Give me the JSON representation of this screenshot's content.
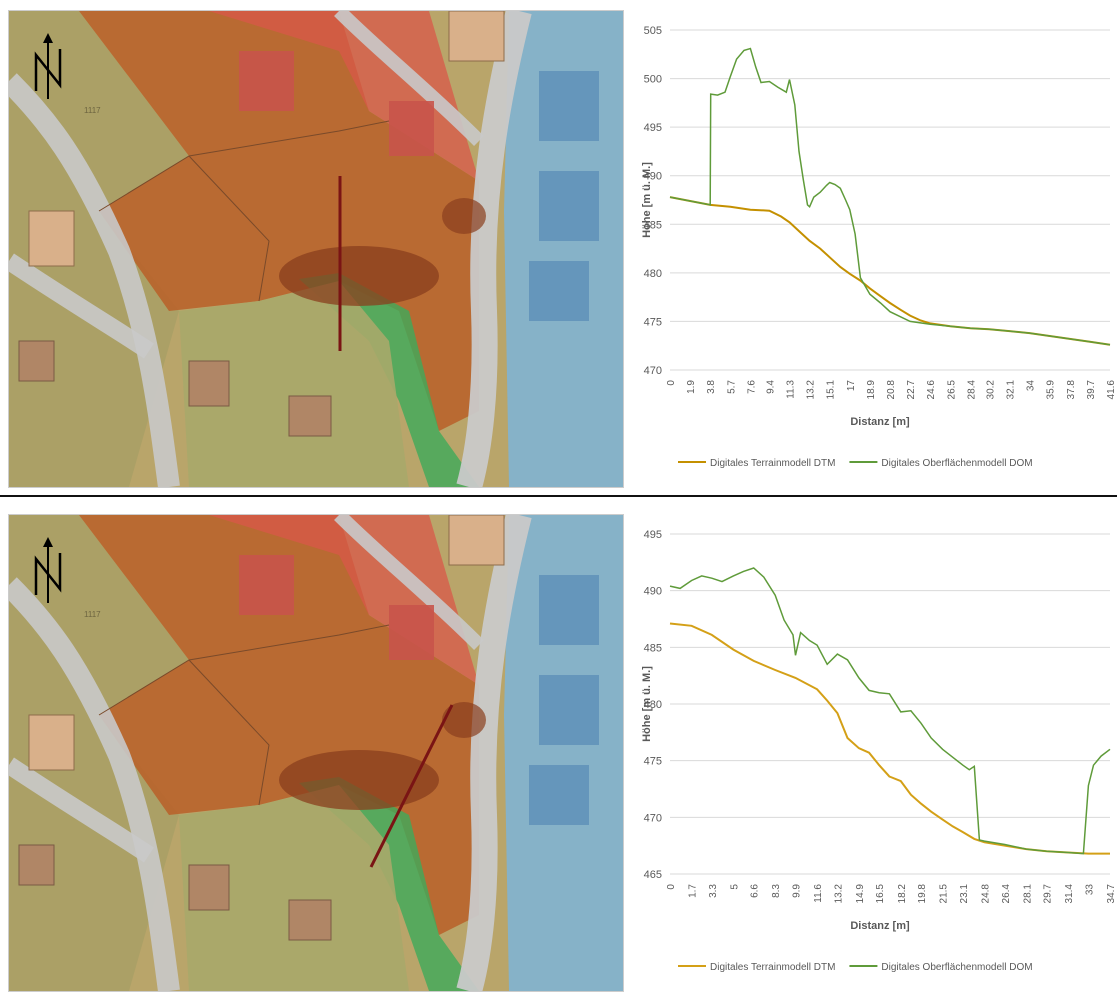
{
  "panels": [
    {
      "map": {
        "north_arrow": "north-arrow-icon",
        "parcel_label": "1117",
        "section_line": "vertical"
      },
      "chart_data": {
        "type": "line",
        "ylabel": "Höhe [m ü. M.]",
        "xlabel": "Distanz [m]",
        "ylim": [
          470,
          505
        ],
        "yticks": [
          470,
          475,
          480,
          485,
          490,
          495,
          500,
          505
        ],
        "xtick_labels": [
          "0",
          "1.9",
          "3.8",
          "5.7",
          "7.6",
          "9.4",
          "11.3",
          "13.2",
          "15.1",
          "17",
          "18.9",
          "20.8",
          "22.7",
          "24.6",
          "26.5",
          "28.4",
          "30.2",
          "32.1",
          "34",
          "35.9",
          "37.8",
          "39.7",
          "41.6"
        ],
        "legend": "bottom",
        "grid": true,
        "series": [
          {
            "name": "Digitales Terrainmodell DTM",
            "color": "#c49000",
            "x": [
              0,
              1.9,
              3.8,
              5.7,
              7.6,
              9.4,
              10.5,
              11.3,
              12.3,
              13.2,
              14.2,
              15.1,
              16.1,
              17,
              18,
              18.9,
              19.9,
              20.8,
              21.8,
              22.7,
              23.7,
              24.6,
              26.5,
              28.4,
              30.2,
              32.1,
              34,
              35.9,
              37.8,
              39.7,
              41.6
            ],
            "values": [
              487.8,
              487.4,
              487.0,
              486.8,
              486.5,
              486.4,
              485.8,
              485.2,
              484.2,
              483.3,
              482.5,
              481.6,
              480.6,
              479.9,
              479.2,
              478.4,
              477.6,
              476.9,
              476.2,
              475.6,
              475.1,
              474.8,
              474.5,
              474.3,
              474.2,
              474.0,
              473.8,
              473.5,
              473.2,
              472.9,
              472.6
            ]
          },
          {
            "name": "Digitales Oberflächenmodell DOM",
            "color": "#5f9b3a",
            "x": [
              0,
              1.9,
              3.8,
              3.85,
              4.5,
              5.2,
              5.7,
              6.3,
              7.0,
              7.6,
              8.1,
              8.6,
              9.4,
              10.2,
              11.0,
              11.3,
              11.8,
              12.2,
              12.6,
              13.0,
              13.2,
              13.6,
              14.2,
              14.8,
              15.1,
              15.6,
              16.1,
              16.6,
              17,
              17.5,
              18,
              18.9,
              19.9,
              20.8,
              22.7,
              24.6,
              26.5,
              28.4,
              30.2,
              32.1,
              34,
              35.9,
              37.8,
              39.7,
              41.6
            ],
            "values": [
              487.8,
              487.4,
              487.0,
              498.4,
              498.3,
              498.6,
              500.2,
              502.0,
              502.9,
              503.1,
              501.2,
              499.6,
              499.7,
              499.1,
              498.6,
              499.9,
              497.3,
              492.5,
              489.6,
              487.0,
              486.8,
              487.8,
              488.3,
              489.0,
              489.3,
              489.1,
              488.7,
              487.5,
              486.5,
              484.0,
              479.5,
              477.8,
              476.9,
              476.0,
              475.0,
              474.7,
              474.5,
              474.3,
              474.2,
              474.0,
              473.8,
              473.5,
              473.2,
              472.9,
              472.6
            ]
          }
        ]
      }
    },
    {
      "map": {
        "north_arrow": "north-arrow-icon",
        "parcel_label": "1117",
        "section_line": "diagonal"
      },
      "chart_data": {
        "type": "line",
        "ylabel": "Höhe [m ü. M.]",
        "xlabel": "Distanz [m]",
        "ylim": [
          465,
          495
        ],
        "yticks": [
          465,
          470,
          475,
          480,
          485,
          490,
          495
        ],
        "xtick_labels": [
          "0",
          "1.7",
          "3.3",
          "5",
          "6.6",
          "8.3",
          "9.9",
          "11.6",
          "13.2",
          "14.9",
          "16.5",
          "18.2",
          "19.8",
          "21.5",
          "23.1",
          "24.8",
          "26.4",
          "28.1",
          "29.7",
          "31.4",
          "33",
          "34.7"
        ],
        "legend": "bottom",
        "grid": true,
        "series": [
          {
            "name": "Digitales Terrainmodell DTM",
            "color": "#d4a017",
            "x": [
              0,
              1.7,
              3.3,
              5,
              6.6,
              8.3,
              9.9,
              11.6,
              12.4,
              13.2,
              14.0,
              14.9,
              15.7,
              16.5,
              17.3,
              18.2,
              19.0,
              19.8,
              20.6,
              21.5,
              22.3,
              23.1,
              24.0,
              24.8,
              26.4,
              28.1,
              29.7,
              31.4,
              33,
              34.7
            ],
            "values": [
              487.1,
              486.9,
              486.1,
              484.8,
              483.8,
              483.0,
              482.3,
              481.3,
              480.3,
              479.2,
              477.0,
              476.1,
              475.7,
              474.6,
              473.6,
              473.2,
              472.0,
              471.2,
              470.5,
              469.8,
              469.2,
              468.7,
              468.1,
              467.8,
              467.5,
              467.2,
              467.0,
              466.9,
              466.8,
              466.8
            ]
          },
          {
            "name": "Digitales Oberflächenmodell DOM",
            "color": "#5f9b3a",
            "x": [
              0,
              0.8,
              1.7,
              2.5,
              3.3,
              4.1,
              5,
              5.8,
              6.6,
              7.4,
              8.3,
              9.0,
              9.7,
              9.9,
              10.3,
              11.0,
              11.6,
              12.4,
              13.2,
              14.0,
              14.9,
              15.7,
              16.5,
              17.3,
              18.2,
              19.0,
              19.8,
              20.6,
              21.5,
              22.3,
              23.1,
              23.6,
              24.0,
              24.4,
              24.8,
              26.4,
              28.1,
              29.7,
              31.4,
              32.6,
              33,
              33.4,
              34.0,
              34.7
            ],
            "values": [
              490.4,
              490.2,
              490.9,
              491.3,
              491.1,
              490.8,
              491.3,
              491.7,
              492.0,
              491.2,
              489.6,
              487.4,
              486.1,
              484.3,
              486.3,
              485.6,
              485.2,
              483.5,
              484.4,
              483.9,
              482.3,
              481.2,
              481.0,
              480.9,
              479.3,
              479.4,
              478.3,
              477.0,
              476.0,
              475.3,
              474.6,
              474.2,
              474.5,
              468.0,
              467.9,
              467.6,
              467.2,
              467.0,
              466.9,
              466.8,
              472.8,
              474.6,
              475.4,
              476.0
            ]
          }
        ]
      }
    }
  ]
}
